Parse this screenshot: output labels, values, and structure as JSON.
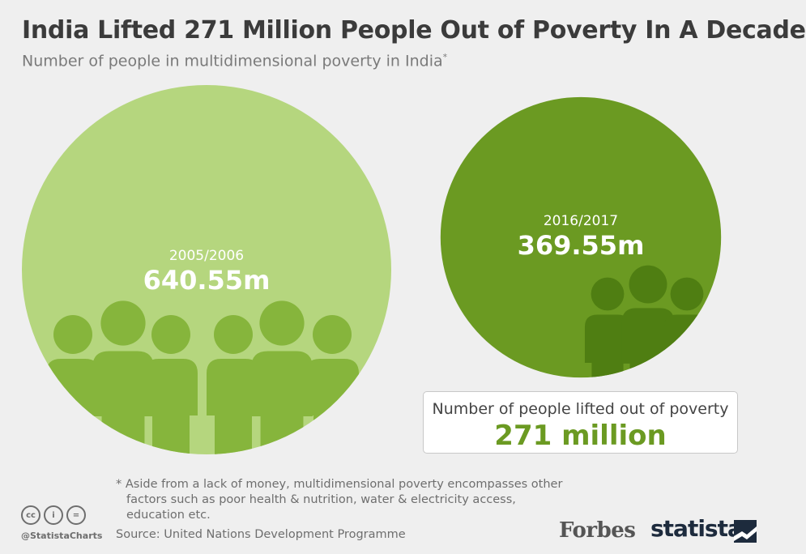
{
  "title": "India Lifted 271 Million People Out of Poverty In A Decade",
  "subtitle": "Number of people in multidimensional poverty in India",
  "subtitle_mark": "*",
  "chart_data": {
    "type": "bubble",
    "title": "India Lifted 271 Million People Out of Poverty In A Decade",
    "categories": [
      "2005/2006",
      "2016/2017"
    ],
    "values": [
      640.55,
      369.55
    ],
    "value_labels": [
      "640.55m",
      "369.55m"
    ],
    "unit": "million people",
    "colors": [
      "#b5d67e",
      "#6b9a22"
    ],
    "figure_colors": [
      "#86b53c",
      "#4f7e12"
    ]
  },
  "callout": {
    "label": "Number of people lifted out of poverty",
    "value": "271 million"
  },
  "note": "* Aside from a lack of money, multidimensional poverty encompasses other factors such as poor health & nutrition, water & electricity access, education etc.",
  "source": "Source: United Nations Development Programme",
  "license_icons": [
    "cc-icon",
    "by-icon",
    "nd-icon"
  ],
  "license_glyphs": [
    "cc",
    "i",
    "="
  ],
  "handle": "@StatistaCharts",
  "brands": {
    "forbes": "Forbes",
    "statista": "statista"
  }
}
